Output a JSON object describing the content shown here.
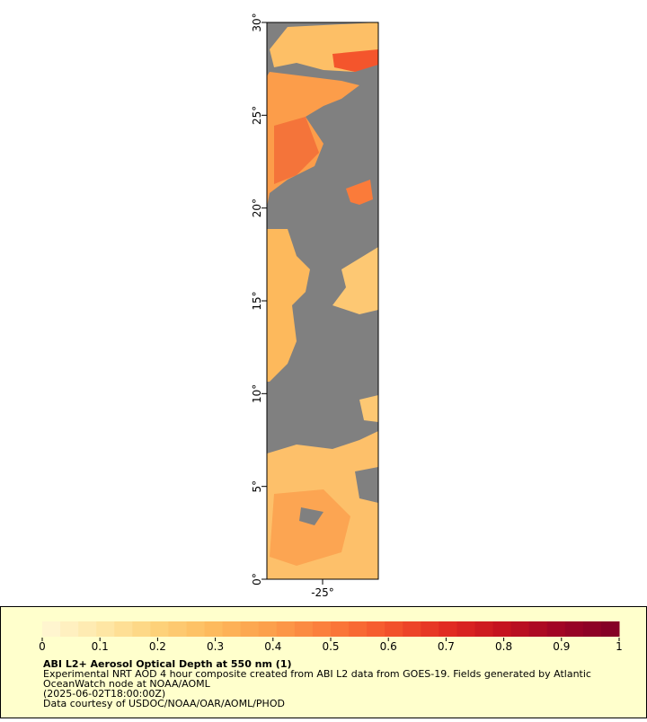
{
  "map": {
    "ylim": [
      0,
      30
    ],
    "yticks": [
      {
        "value": 0,
        "label": "0°"
      },
      {
        "value": 5,
        "label": "5°"
      },
      {
        "value": 10,
        "label": "10°"
      },
      {
        "value": 15,
        "label": "15°"
      },
      {
        "value": 20,
        "label": "20°"
      },
      {
        "value": 25,
        "label": "25°"
      },
      {
        "value": 30,
        "label": "30°"
      }
    ],
    "xlim": [
      -28,
      -22
    ],
    "xticks": [
      {
        "value": -25,
        "label": "-25°"
      }
    ]
  },
  "colorbar": {
    "lim": [
      0,
      1
    ],
    "ticks": [
      0,
      0.1,
      0.2,
      0.3,
      0.4,
      0.5,
      0.6,
      0.7,
      0.8,
      0.9,
      1
    ],
    "colors": [
      "#fff7d6",
      "#fee8a8",
      "#fdd27a",
      "#fdb95c",
      "#fc9d4a",
      "#fb7b3a",
      "#f4552c",
      "#e22b22",
      "#c4121f",
      "#9e0426",
      "#800026"
    ]
  },
  "caption": {
    "title": "ABI L2+ Aerosol Optical Depth at 550 nm (1)",
    "lines": [
      "Experimental NRT AOD 4 hour composite created from ABI L2 data from GOES-19. Fields generated by Atlantic",
      "OceanWatch node at NOAA/AOML",
      "(2025-06-02T18:00:00Z)",
      "Data courtesy of USDOC/NOAA/OAR/AOML/PHOD"
    ]
  }
}
